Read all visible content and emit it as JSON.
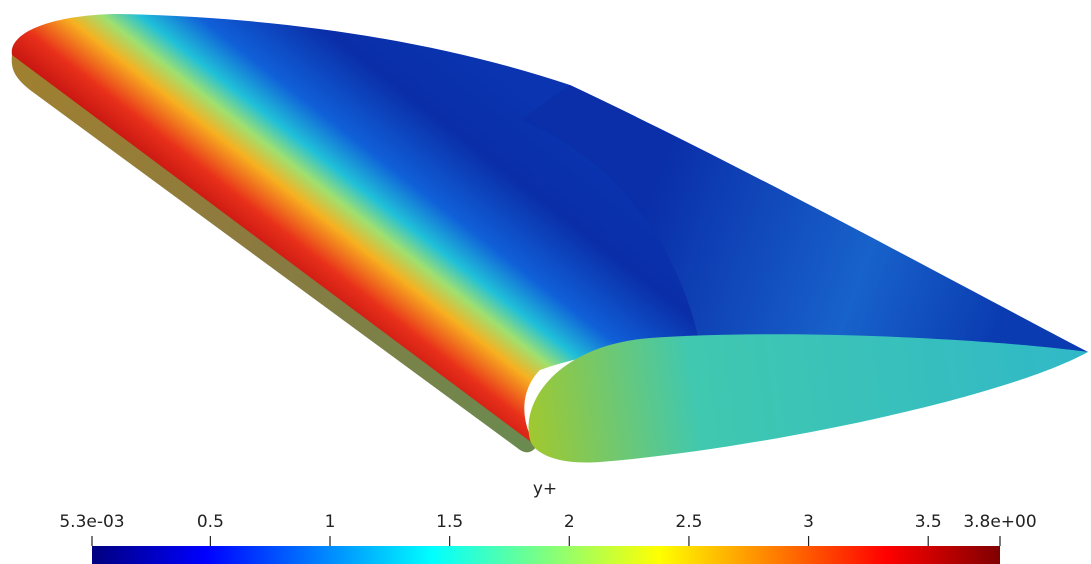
{
  "colorbar": {
    "title": "y+",
    "clim": [
      0.0053,
      3.8
    ],
    "ticks": [
      {
        "value": 0.0053,
        "label": "5.3e-03"
      },
      0.5,
      1,
      1.5,
      2,
      2.5,
      3,
      3.5,
      {
        "value": 3.8,
        "label": "3.8e+00"
      }
    ]
  }
}
